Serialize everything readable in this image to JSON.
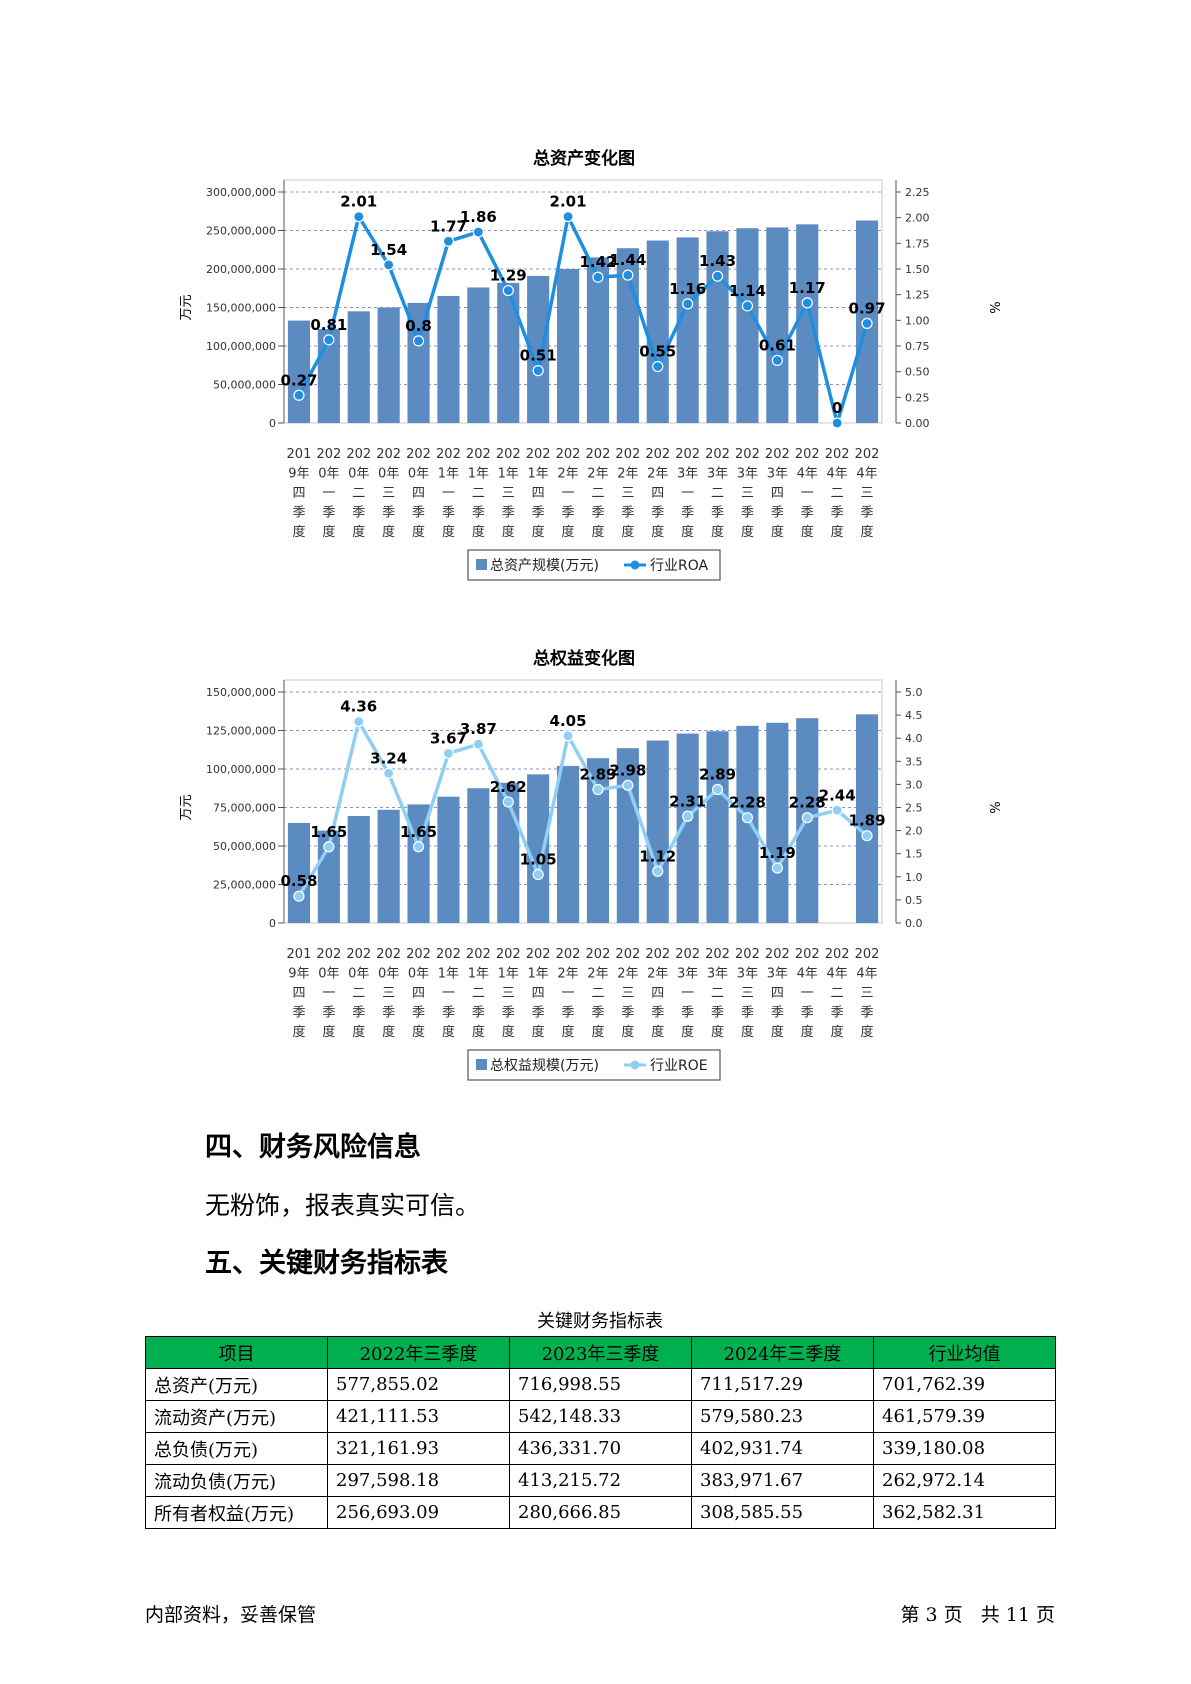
{
  "charts": [
    {
      "type": "bar+line",
      "title": "总资产变化图",
      "ylabel": "万元",
      "y2label": "%",
      "ylim": [
        0,
        300000000
      ],
      "yticks": [
        "0",
        "50,000,000",
        "100,000,000",
        "150,000,000",
        "200,000,000",
        "250,000,000",
        "300,000,000"
      ],
      "y2lim": [
        0,
        2.25
      ],
      "y2ticks": [
        "0.00",
        "0.25",
        "0.50",
        "0.75",
        "1.00",
        "1.25",
        "1.50",
        "1.75",
        "2.00",
        "2.25"
      ],
      "categories": [
        [
          "201",
          "9年",
          "四",
          "季",
          "度"
        ],
        [
          "202",
          "0年",
          "一",
          "季",
          "度"
        ],
        [
          "202",
          "0年",
          "二",
          "季",
          "度"
        ],
        [
          "202",
          "0年",
          "三",
          "季",
          "度"
        ],
        [
          "202",
          "0年",
          "四",
          "季",
          "度"
        ],
        [
          "202",
          "1年",
          "一",
          "季",
          "度"
        ],
        [
          "202",
          "1年",
          "二",
          "季",
          "度"
        ],
        [
          "202",
          "1年",
          "三",
          "季",
          "度"
        ],
        [
          "202",
          "1年",
          "四",
          "季",
          "度"
        ],
        [
          "202",
          "2年",
          "一",
          "季",
          "度"
        ],
        [
          "202",
          "2年",
          "二",
          "季",
          "度"
        ],
        [
          "202",
          "2年",
          "三",
          "季",
          "度"
        ],
        [
          "202",
          "2年",
          "四",
          "季",
          "度"
        ],
        [
          "202",
          "3年",
          "一",
          "季",
          "度"
        ],
        [
          "202",
          "3年",
          "二",
          "季",
          "度"
        ],
        [
          "202",
          "3年",
          "三",
          "季",
          "度"
        ],
        [
          "202",
          "3年",
          "四",
          "季",
          "度"
        ],
        [
          "202",
          "4年",
          "一",
          "季",
          "度"
        ],
        [
          "202",
          "4年",
          "二",
          "季",
          "度"
        ],
        [
          "202",
          "4年",
          "三",
          "季",
          "度"
        ]
      ],
      "bar_series": {
        "name": "总资产规模(万元)",
        "color": "#5b8bc0",
        "values": [
          133000000,
          122000000,
          145000000,
          150000000,
          156000000,
          165000000,
          176000000,
          182000000,
          191000000,
          200000000,
          215000000,
          227000000,
          237000000,
          241000000,
          249000000,
          253000000,
          254000000,
          258000000,
          null,
          263000000
        ]
      },
      "line_series": {
        "name": "行业ROA",
        "color": "#1e8fe0",
        "values": [
          0.27,
          0.81,
          2.01,
          1.54,
          0.8,
          1.77,
          1.86,
          1.29,
          0.51,
          2.01,
          1.42,
          1.44,
          0.55,
          1.16,
          1.43,
          1.14,
          0.61,
          1.17,
          0,
          0.97
        ],
        "labels": [
          "0.27",
          "0.81",
          "2.01",
          "1.54",
          "0.8",
          "1.77",
          "1.86",
          "1.29",
          "0.51",
          "2.01",
          "1.42",
          "1.44",
          "0.55",
          "1.16",
          "1.43",
          "1.14",
          "0.61",
          "1.17",
          "0",
          "0.97"
        ]
      }
    },
    {
      "type": "bar+line",
      "title": "总权益变化图",
      "ylabel": "万元",
      "y2label": "%",
      "ylim": [
        0,
        150000000
      ],
      "yticks": [
        "0",
        "25,000,000",
        "50,000,000",
        "75,000,000",
        "100,000,000",
        "125,000,000",
        "150,000,000"
      ],
      "y2lim": [
        0,
        5.0
      ],
      "y2ticks": [
        "0.0",
        "0.5",
        "1.0",
        "1.5",
        "2.0",
        "2.5",
        "3.0",
        "3.5",
        "4.0",
        "4.5",
        "5.0"
      ],
      "categories": [
        [
          "201",
          "9年",
          "四",
          "季",
          "度"
        ],
        [
          "202",
          "0年",
          "一",
          "季",
          "度"
        ],
        [
          "202",
          "0年",
          "二",
          "季",
          "度"
        ],
        [
          "202",
          "0年",
          "三",
          "季",
          "度"
        ],
        [
          "202",
          "0年",
          "四",
          "季",
          "度"
        ],
        [
          "202",
          "1年",
          "一",
          "季",
          "度"
        ],
        [
          "202",
          "1年",
          "二",
          "季",
          "度"
        ],
        [
          "202",
          "1年",
          "三",
          "季",
          "度"
        ],
        [
          "202",
          "1年",
          "四",
          "季",
          "度"
        ],
        [
          "202",
          "2年",
          "一",
          "季",
          "度"
        ],
        [
          "202",
          "2年",
          "二",
          "季",
          "度"
        ],
        [
          "202",
          "2年",
          "三",
          "季",
          "度"
        ],
        [
          "202",
          "2年",
          "四",
          "季",
          "度"
        ],
        [
          "202",
          "3年",
          "一",
          "季",
          "度"
        ],
        [
          "202",
          "3年",
          "二",
          "季",
          "度"
        ],
        [
          "202",
          "3年",
          "三",
          "季",
          "度"
        ],
        [
          "202",
          "3年",
          "四",
          "季",
          "度"
        ],
        [
          "202",
          "4年",
          "一",
          "季",
          "度"
        ],
        [
          "202",
          "4年",
          "二",
          "季",
          "度"
        ],
        [
          "202",
          "4年",
          "三",
          "季",
          "度"
        ]
      ],
      "bar_series": {
        "name": "总权益规模(万元)",
        "color": "#5b8bc0",
        "values": [
          65000000,
          60000000,
          69500000,
          73500000,
          77000000,
          82000000,
          87500000,
          91000000,
          96500000,
          102000000,
          107000000,
          113500000,
          118500000,
          123000000,
          124500000,
          128000000,
          130000000,
          133000000,
          null,
          135500000
        ]
      },
      "line_series": {
        "name": "行业ROE",
        "color": "#8fcff5",
        "values": [
          0.58,
          1.65,
          4.36,
          3.24,
          1.65,
          3.67,
          3.87,
          2.62,
          1.05,
          4.05,
          2.89,
          2.98,
          1.12,
          2.31,
          2.89,
          2.28,
          1.19,
          2.28,
          2.44,
          1.89
        ],
        "labels": [
          "0.58",
          "1.65",
          "4.36",
          "3.24",
          "1.65",
          "3.67",
          "3.87",
          "2.62",
          "1.05",
          "4.05",
          "2.89",
          "2.98",
          "1.12",
          "2.31",
          "2.89",
          "2.28",
          "1.19",
          "2.28",
          "2.44",
          "1.89"
        ]
      }
    }
  ],
  "section4": {
    "heading": "四、财务风险信息",
    "text": "无粉饰，报表真实可信。"
  },
  "section5": {
    "heading": "五、关键财务指标表",
    "table_caption": "关键财务指标表",
    "header_color": "#00b050",
    "table": {
      "headers": [
        "项目",
        "2022年三季度",
        "2023年三季度",
        "2024年三季度",
        "行业均值"
      ],
      "rows": [
        [
          "总资产(万元)",
          "577,855.02",
          "716,998.55",
          "711,517.29",
          "701,762.39"
        ],
        [
          "流动资产(万元)",
          "421,111.53",
          "542,148.33",
          "579,580.23",
          "461,579.39"
        ],
        [
          "总负债(万元)",
          "321,161.93",
          "436,331.70",
          "402,931.74",
          "339,180.08"
        ],
        [
          "流动负债(万元)",
          "297,598.18",
          "413,215.72",
          "383,971.67",
          "262,972.14"
        ],
        [
          "所有者权益(万元)",
          "256,693.09",
          "280,666.85",
          "308,585.55",
          "362,582.31"
        ]
      ]
    }
  },
  "footer": {
    "left": "内部资料，妥善保管",
    "right": "第 3 页   共 11 页"
  }
}
